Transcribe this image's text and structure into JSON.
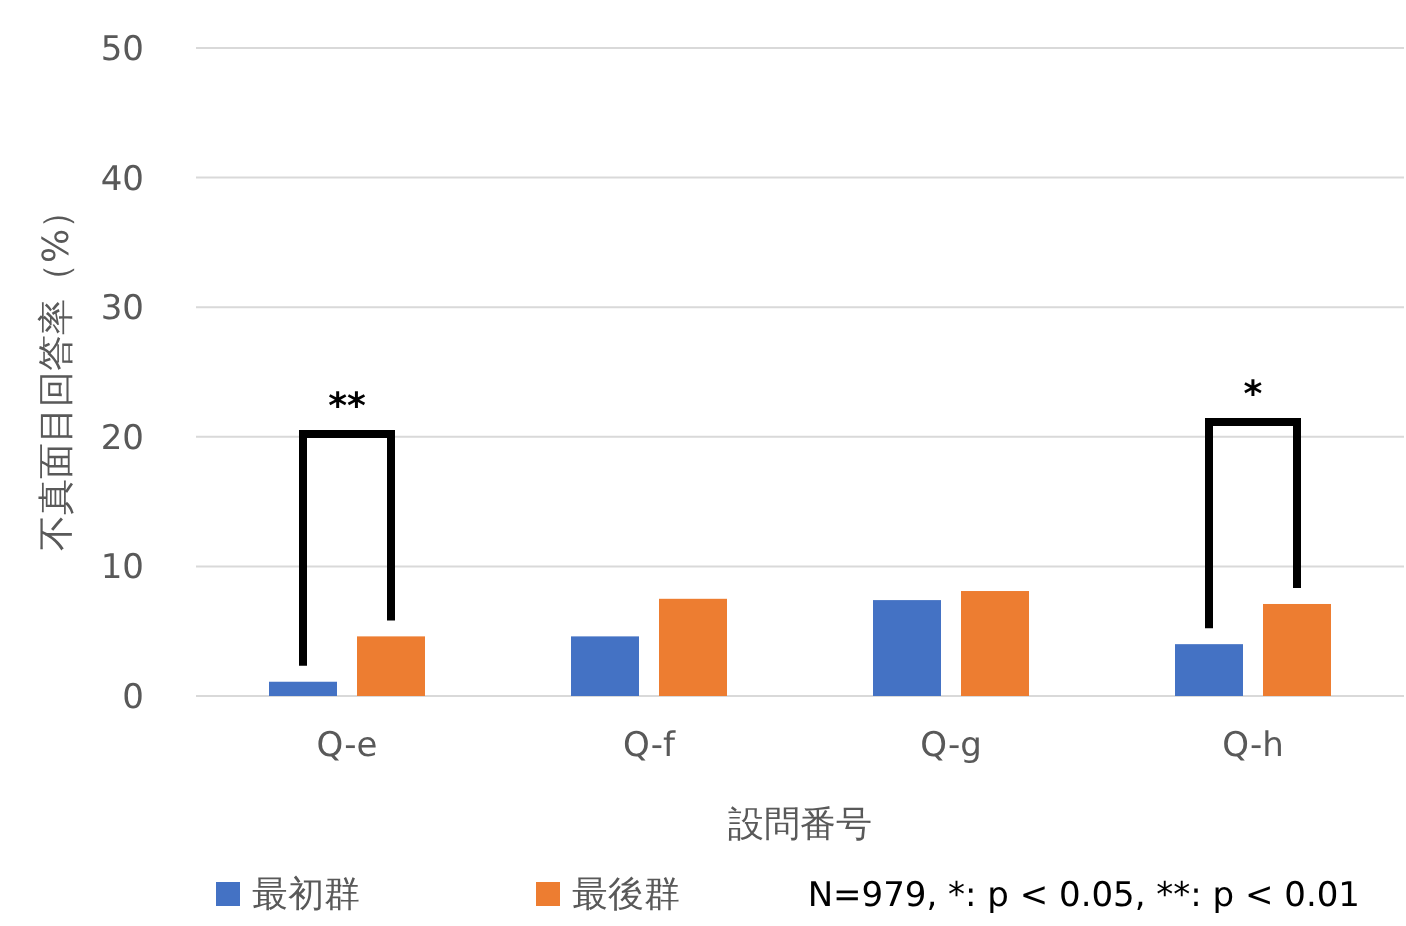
{
  "chart_data": {
    "type": "bar",
    "categories": [
      "Q-e",
      "Q-f",
      "Q-g",
      "Q-h"
    ],
    "series": [
      {
        "name": "最初群",
        "color": "#4472c4",
        "values": [
          1.1,
          4.6,
          7.4,
          4.0
        ]
      },
      {
        "name": "最後群",
        "color": "#ed7d31",
        "values": [
          4.6,
          7.5,
          8.1,
          7.1
        ]
      }
    ],
    "xlabel": "設問番号",
    "ylabel": "不真面目回答率（%）",
    "ylim": [
      0,
      50
    ],
    "yticks": [
      0,
      10,
      20,
      30,
      40,
      50
    ],
    "grid": "y",
    "legend": "bottom",
    "annotations": [
      "**",
      "*",
      "N=979, *: p < 0.05, **: p < 0.01"
    ]
  }
}
